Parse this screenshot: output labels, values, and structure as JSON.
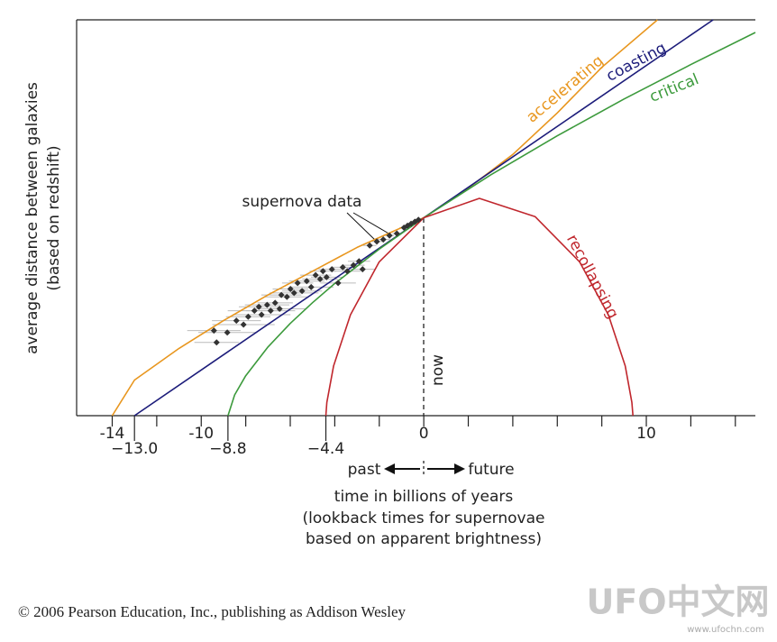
{
  "chart_data": {
    "type": "line",
    "ylabel": [
      "average distance between galaxies",
      "(based on redshift)"
    ],
    "xlabel": [
      "time in billions of years",
      "(lookback times for supernovae",
      "based on apparent brightness)"
    ],
    "xlim": [
      -15.6,
      14.9
    ],
    "ylim": [
      0,
      2
    ],
    "xticks": [
      -14,
      -10,
      0,
      10
    ],
    "xminor_ticks": [
      -12,
      -8,
      -6,
      -4,
      -2,
      2,
      4,
      6,
      8,
      12,
      14
    ],
    "xticks_lower": [
      {
        "value": -13,
        "label": "−13.0"
      },
      {
        "value": -8.8,
        "label": "−8.8"
      },
      {
        "value": -4.4,
        "label": "−4.4"
      }
    ],
    "series": [
      {
        "name": "accelerating",
        "color": "#e8961e",
        "x": [
          -14,
          -13,
          -11,
          -9,
          -7,
          -5,
          -3,
          0,
          2,
          4,
          6,
          8,
          10.5
        ],
        "values": [
          0,
          0.18,
          0.34,
          0.48,
          0.61,
          0.73,
          0.85,
          1,
          1.15,
          1.32,
          1.53,
          1.76,
          2.0
        ]
      },
      {
        "name": "coasting",
        "color": "#1c1c7a",
        "x": [
          -13,
          13
        ],
        "values": [
          0,
          2
        ]
      },
      {
        "name": "critical",
        "color": "#3c9a3c",
        "x": [
          -8.8,
          -8.5,
          -8,
          -7,
          -6,
          -5,
          -4,
          -2,
          0,
          3,
          6,
          9,
          12,
          14.9
        ],
        "values": [
          0,
          0.105,
          0.202,
          0.347,
          0.466,
          0.571,
          0.668,
          0.842,
          1,
          1.216,
          1.414,
          1.6,
          1.774,
          1.936
        ]
      },
      {
        "name": "recollapsing",
        "color": "#c0272d",
        "x": [
          -4.4,
          -4.354,
          -4.052,
          -3.296,
          -2.004,
          0,
          2.499,
          4.999,
          7.002,
          8.294,
          9.05,
          9.35,
          9.4
        ],
        "values": [
          0,
          0.067,
          0.252,
          0.51,
          0.777,
          1,
          1.098,
          1.006,
          0.777,
          0.51,
          0.252,
          0.067,
          0
        ]
      }
    ],
    "supernova": {
      "x": [
        -9.43,
        -9.31,
        -8.83,
        -8.42,
        -8.1,
        -7.89,
        -7.61,
        -7.41,
        -7.29,
        -7.04,
        -6.88,
        -6.68,
        -6.48,
        -6.4,
        -6.15,
        -5.99,
        -5.83,
        -5.67,
        -5.47,
        -5.26,
        -5.06,
        -4.86,
        -4.66,
        -4.53,
        -4.37,
        -4.13,
        -3.85,
        -3.64,
        -3.44,
        -3.16,
        -2.91,
        -2.75,
        -2.43,
        -2.11,
        -1.82,
        -1.54,
        -1.21,
        -0.89,
        -0.73,
        -0.57,
        -0.4,
        -0.24
      ],
      "values": [
        0.43,
        0.37,
        0.42,
        0.48,
        0.46,
        0.5,
        0.53,
        0.55,
        0.51,
        0.56,
        0.53,
        0.57,
        0.54,
        0.61,
        0.6,
        0.64,
        0.62,
        0.67,
        0.63,
        0.68,
        0.65,
        0.71,
        0.69,
        0.73,
        0.7,
        0.74,
        0.67,
        0.75,
        0.73,
        0.76,
        0.78,
        0.74,
        0.86,
        0.88,
        0.89,
        0.91,
        0.92,
        0.95,
        0.96,
        0.97,
        0.98,
        0.99
      ],
      "xerr": [
        1.2,
        1.0,
        1.3,
        1.1,
        1.4,
        1.0,
        1.2,
        0.9,
        1.3,
        1.0,
        1.1,
        0.8,
        1.2,
        0.9,
        1.0,
        0.8,
        1.1,
        0.7,
        0.9,
        0.8,
        1.0,
        0.7,
        0.8,
        0.6,
        0.7,
        0.6,
        0.8,
        0.5,
        0.6,
        0.5,
        0.5,
        0.6,
        0.3,
        0.3,
        0.3,
        0.2,
        0.2,
        0.2,
        0.2,
        0.1,
        0.1,
        0.1
      ],
      "color": "#333333"
    },
    "annotations": {
      "supernova": "supernova data",
      "now": "now",
      "past": "past",
      "future": "future"
    },
    "footer": "© 2006 Pearson Education, Inc., publishing as Addison Wesley",
    "watermark": [
      "UFO中文网",
      "www.ufochn.com"
    ]
  }
}
